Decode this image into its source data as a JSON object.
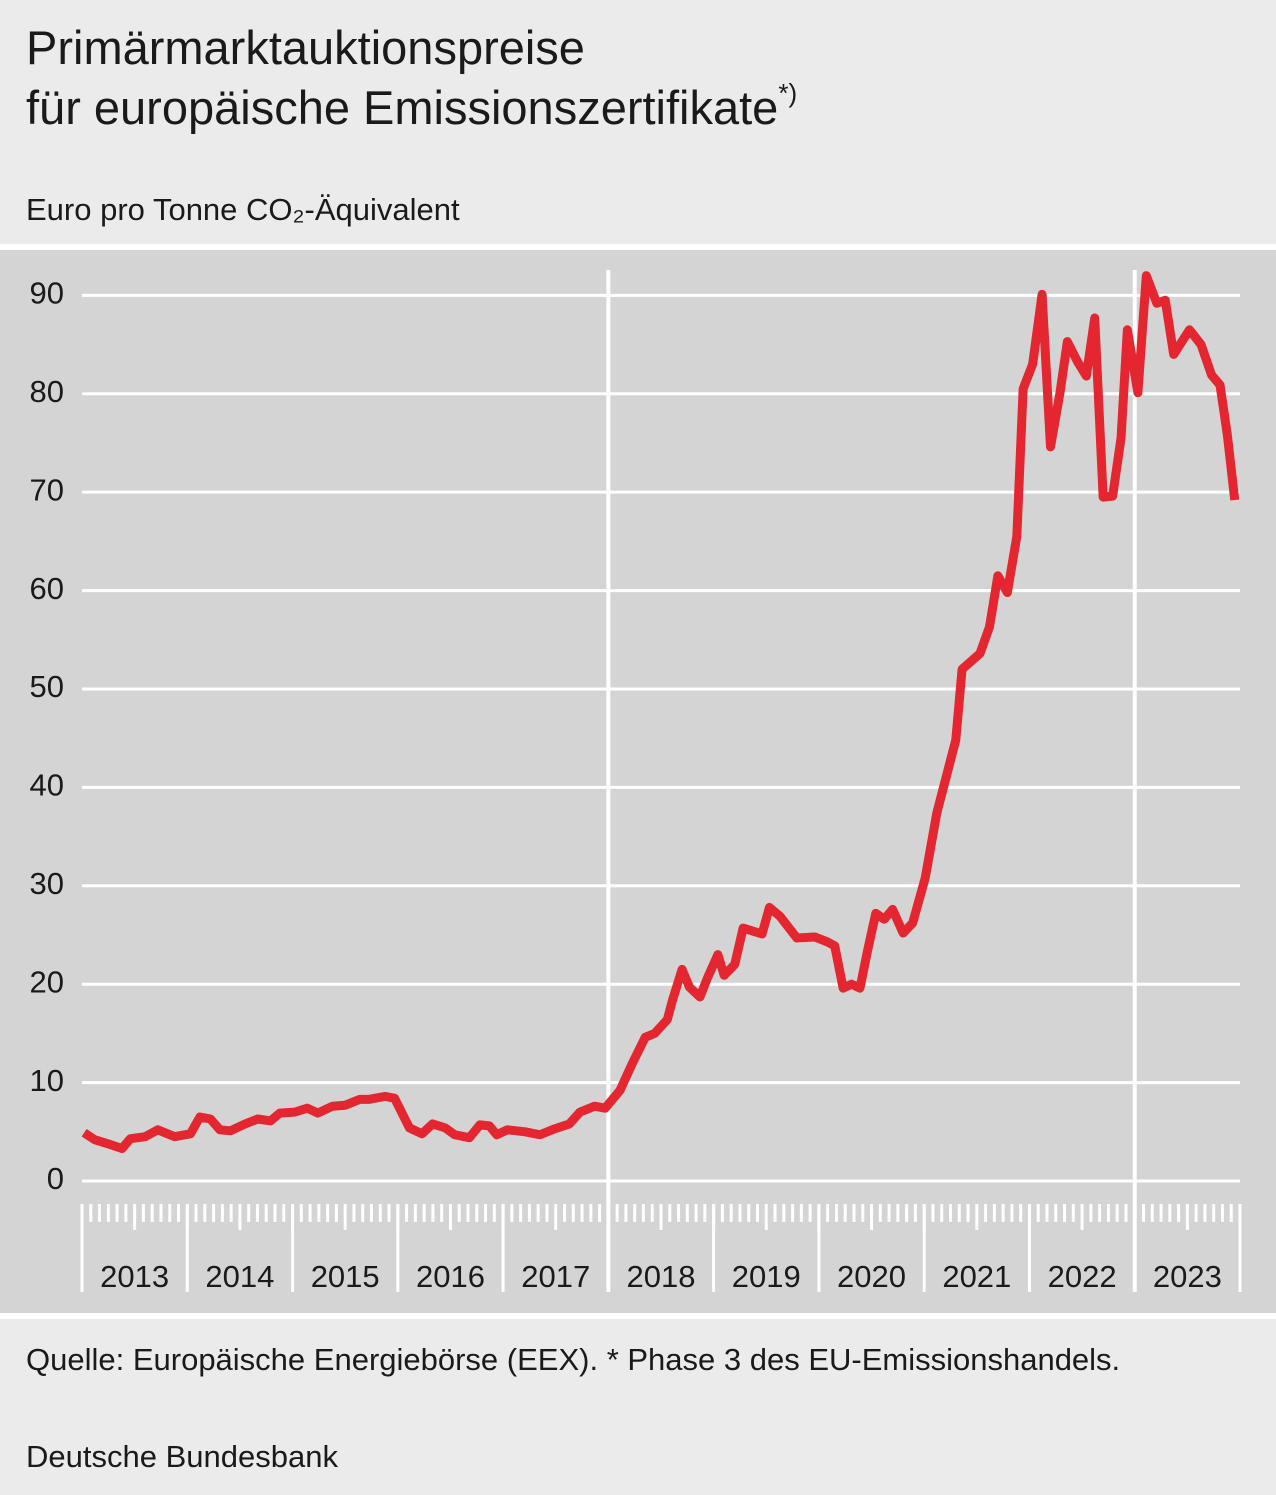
{
  "chart_data": {
    "type": "line",
    "title": [
      "Primärmarktauktionspreise",
      "für europäische Emissionszertifikate"
    ],
    "title_note": "*)",
    "subtitle": "Euro pro Tonne CO₂-Äquivalent",
    "source": "Quelle: Europäische Energiebörse (EEX). * Phase 3 des EU-Emissionshandels.",
    "publisher": "Deutsche Bundesbank",
    "categories": [
      "2013",
      "2014",
      "2015",
      "2016",
      "2017",
      "2018",
      "2019",
      "2020",
      "2021",
      "2022",
      "2023"
    ],
    "xlim": [
      2013,
      2024
    ],
    "xticks": [
      2013,
      2014,
      2015,
      2016,
      2017,
      2018,
      2019,
      2020,
      2021,
      2022,
      2023,
      2024
    ],
    "vlines": [
      2018,
      2023
    ],
    "ylim": [
      0,
      94
    ],
    "yticks": [
      0,
      10,
      20,
      30,
      40,
      50,
      60,
      70,
      80,
      90
    ],
    "grid": true,
    "series": [
      {
        "color": "#e3262f",
        "x": [
          2013.02,
          2013.12,
          2013.27,
          2013.38,
          2013.46,
          2013.6,
          2013.72,
          2013.88,
          2014.03,
          2014.12,
          2014.22,
          2014.31,
          2014.41,
          2014.55,
          2014.67,
          2014.79,
          2014.88,
          2015.02,
          2015.14,
          2015.24,
          2015.38,
          2015.5,
          2015.64,
          2015.73,
          2015.88,
          2015.97,
          2016.11,
          2016.23,
          2016.33,
          2016.45,
          2016.54,
          2016.68,
          2016.78,
          2016.87,
          2016.94,
          2017.04,
          2017.21,
          2017.35,
          2017.49,
          2017.63,
          2017.73,
          2017.87,
          2017.97,
          2018.11,
          2018.23,
          2018.35,
          2018.44,
          2018.56,
          2018.61,
          2018.7,
          2018.77,
          2018.87,
          2018.94,
          2019.04,
          2019.1,
          2019.2,
          2019.28,
          2019.46,
          2019.53,
          2019.63,
          2019.79,
          2019.96,
          2020.08,
          2020.15,
          2020.23,
          2020.31,
          2020.39,
          2020.46,
          2020.54,
          2020.62,
          2020.7,
          2020.8,
          2020.89,
          2021.01,
          2021.12,
          2021.21,
          2021.3,
          2021.36,
          2021.53,
          2021.62,
          2021.7,
          2021.79,
          2021.88,
          2021.94,
          2022.03,
          2022.12,
          2022.2,
          2022.29,
          2022.36,
          2022.46,
          2022.54,
          2022.62,
          2022.7,
          2022.79,
          2022.87,
          2022.93,
          2023.03,
          2023.11,
          2023.21,
          2023.29,
          2023.37,
          2023.52,
          2023.63,
          2023.73,
          2023.81,
          2023.88,
          2023.95
        ],
        "values": [
          4.9,
          4.2,
          3.7,
          3.3,
          4.3,
          4.5,
          5.2,
          4.5,
          4.8,
          6.5,
          6.3,
          5.2,
          5.1,
          5.8,
          6.3,
          6.1,
          6.9,
          7.0,
          7.4,
          6.9,
          7.6,
          7.7,
          8.3,
          8.3,
          8.6,
          8.4,
          5.4,
          4.8,
          5.8,
          5.4,
          4.7,
          4.4,
          5.7,
          5.6,
          4.7,
          5.2,
          5.0,
          4.7,
          5.3,
          5.8,
          7.0,
          7.6,
          7.4,
          9.2,
          12.0,
          14.6,
          15.0,
          16.4,
          18.4,
          21.5,
          19.7,
          18.7,
          20.6,
          23.0,
          20.9,
          22.0,
          25.7,
          25.1,
          27.8,
          26.9,
          24.7,
          24.8,
          24.3,
          23.9,
          19.6,
          20.0,
          19.6,
          23.3,
          27.2,
          26.6,
          27.6,
          25.2,
          26.2,
          30.8,
          37.4,
          41.1,
          44.8,
          52.0,
          53.6,
          56.3,
          61.5,
          59.8,
          65.5,
          80.5,
          83.0,
          90.1,
          74.6,
          80.1,
          85.3,
          83.2,
          81.8,
          87.7,
          69.5,
          69.6,
          75.5,
          86.5,
          80.1,
          92.0,
          89.2,
          89.5,
          84.0,
          86.5,
          85.0,
          81.9,
          80.9,
          75.8,
          69.2
        ]
      }
    ]
  }
}
